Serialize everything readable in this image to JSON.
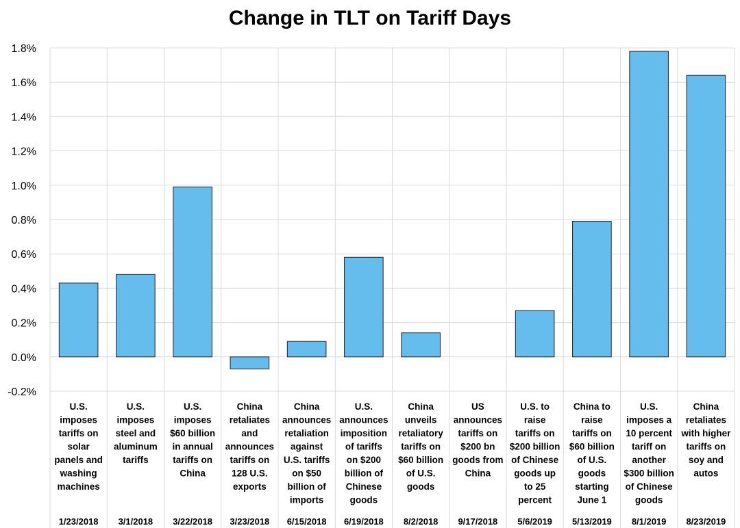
{
  "chart_data": {
    "type": "bar",
    "title": "Change in TLT on Tariff Days",
    "xlabel": "",
    "ylabel": "",
    "ylim": [
      -0.002,
      0.018
    ],
    "y_ticks": [
      {
        "value": 0.018,
        "label": "1.8%"
      },
      {
        "value": 0.016,
        "label": "1.6%"
      },
      {
        "value": 0.014,
        "label": "1.4%"
      },
      {
        "value": 0.012,
        "label": "1.2%"
      },
      {
        "value": 0.01,
        "label": "1.0%"
      },
      {
        "value": 0.008,
        "label": "0.8%"
      },
      {
        "value": 0.006,
        "label": "0.6%"
      },
      {
        "value": 0.004,
        "label": "0.4%"
      },
      {
        "value": 0.002,
        "label": "0.2%"
      },
      {
        "value": 0.0,
        "label": "0.0%"
      },
      {
        "value": -0.002,
        "label": "-0.2%"
      }
    ],
    "grid": true,
    "bar_color": "#64BDEC",
    "bar_edge_color": "#222222",
    "grid_color": "#d9d9d9",
    "categories": [
      {
        "lines": [
          "U.S.",
          "imposes",
          "tariffs on",
          "solar",
          "panels and",
          "washing",
          "machines"
        ],
        "date": "1/23/2018"
      },
      {
        "lines": [
          "U.S.",
          "imposes",
          "steel and",
          "aluminum",
          "tariffs"
        ],
        "date": "3/1/2018"
      },
      {
        "lines": [
          "U.S.",
          "imposes",
          "$60 billion",
          "in annual",
          "tariffs on",
          "China"
        ],
        "date": "3/22/2018"
      },
      {
        "lines": [
          "China",
          "retaliates",
          "and",
          "announces",
          "tariffs on",
          "128 U.S.",
          "exports"
        ],
        "date": "3/23/2018"
      },
      {
        "lines": [
          "China",
          "announces",
          "retaliation",
          "against",
          "U.S. tariffs",
          "on $50",
          "billion of",
          "imports"
        ],
        "date": "6/15/2018"
      },
      {
        "lines": [
          "U.S.",
          "announces",
          "imposition",
          "of tariffs",
          "on $200",
          "billion of",
          "Chinese",
          "goods"
        ],
        "date": "6/19/2018"
      },
      {
        "lines": [
          "China",
          "unveils",
          "retaliatory",
          "tariffs on",
          "$60 billion",
          "of U.S.",
          "goods"
        ],
        "date": "8/2/2018"
      },
      {
        "lines": [
          "US",
          "announces",
          "tariffs on",
          "$200 bn",
          "goods from",
          "China"
        ],
        "date": "9/17/2018"
      },
      {
        "lines": [
          "U.S. to",
          "raise",
          "tariffs on",
          "$200 billion",
          "of Chinese",
          "goods up",
          "to 25",
          "percent"
        ],
        "date": "5/6/2019"
      },
      {
        "lines": [
          "China to",
          "raise",
          "tariffs on",
          "$60 billion",
          "of U.S.",
          "goods",
          "starting",
          "June 1"
        ],
        "date": "5/13/2019"
      },
      {
        "lines": [
          "U.S.",
          "imposes a",
          "10 percent",
          "tariff on",
          "another",
          "$300 billion",
          "of Chinese",
          "goods"
        ],
        "date": "8/1/2019"
      },
      {
        "lines": [
          "China",
          "retaliates",
          "with higher",
          "tariffs on",
          "soy and",
          "autos"
        ],
        "date": "8/23/2019"
      }
    ],
    "values": [
      0.0043,
      0.0048,
      0.0099,
      -0.0007,
      0.0009,
      0.0058,
      0.0014,
      0.0,
      0.0027,
      0.0079,
      0.0178,
      0.0164
    ]
  }
}
